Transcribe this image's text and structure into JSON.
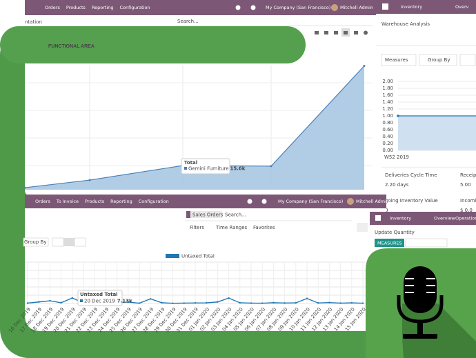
{
  "banner": {
    "title": "FUNCTIONAL AREA"
  },
  "top_app": {
    "menu": [
      "Orders",
      "Products",
      "Reporting",
      "Configuration"
    ],
    "company": "My Company (San Francisco)",
    "user": "Mitchell Admin",
    "breadcrumb": "ntation",
    "search": "Search...",
    "chart": {
      "type": "area",
      "tooltip_title": "Total",
      "series": [
        {
          "name": "Gemini Furniture",
          "color": "#a9c8e3",
          "values": [
            1300,
            6200,
            15600,
            15200,
            80000
          ],
          "value_labels": [
            null,
            null,
            "15.6k",
            null,
            null
          ]
        }
      ]
    }
  },
  "sales_app": {
    "menu": [
      "Orders",
      "To Invoice",
      "Products",
      "Reporting",
      "Configuration"
    ],
    "company": "My Company (San Francisco)",
    "user": "Mitchell Admin",
    "facet": "Sales Orders",
    "search": "Search...",
    "filters": "Filters",
    "time_ranges": "Time Ranges",
    "favorites": "Favorites",
    "group_by": "Group By",
    "chart": {
      "type": "line",
      "tooltip_title": "Untaxed Total",
      "categories": [
        "16 Dec 2019",
        "17 Dec 2019",
        "18 Dec 2019",
        "19 Dec 2019",
        "20 Dec 2019",
        "21 Dec 2019",
        "22 Dec 2019",
        "23 Dec 2019",
        "24 Dec 2019",
        "25 Dec 2019",
        "26 Dec 2019",
        "27 Dec 2019",
        "28 Dec 2019",
        "29 Dec 2019",
        "30 Dec 2019",
        "31 Dec 2019",
        "01 Jan 2020",
        "02 Jan 2020",
        "03 Jan 2020",
        "04 Jan 2020",
        "05 Jan 2020",
        "06 Jan 2020",
        "07 Jan 2020",
        "08 Jan 2020",
        "09 Jan 2020",
        "10 Jan 2020",
        "11 Jan 2020",
        "12 Jan 2020",
        "13 Jan 2020",
        "14 Jan 2020",
        "15 Jan 2020"
      ],
      "series": [
        {
          "name": "Untaxed Total",
          "color": "#1f77b4",
          "values": [
            500,
            2000,
            3500,
            1000,
            7130,
            800,
            1500,
            600,
            1200,
            1800,
            400,
            6000,
            1000,
            300,
            500,
            700,
            800,
            2000,
            7000,
            900,
            500,
            400,
            1000,
            600,
            800,
            6500,
            700,
            1200,
            500,
            800,
            400
          ],
          "value_labels": [
            null,
            null,
            null,
            null,
            "7.13k",
            null,
            null,
            null,
            null,
            null,
            null,
            null,
            null,
            null,
            null,
            null,
            null,
            null,
            null,
            null,
            null,
            null,
            null,
            null,
            null,
            null,
            null,
            null,
            null,
            null,
            null
          ]
        }
      ]
    }
  },
  "inventory_app": {
    "app": "Inventory",
    "menu": [
      "Overv"
    ],
    "title": "Warehouse Analysis",
    "measures": "Measures",
    "group_by": "Group By",
    "chart": {
      "type": "line",
      "categories": [
        "W52 2019"
      ],
      "values": [
        1
      ],
      "color": "#1f77b4",
      "ylim": [
        0,
        2
      ],
      "yticks": [
        {
          "value": 0,
          "label": "0.00"
        },
        {
          "value": 0.2,
          "label": "0.20"
        },
        {
          "value": 0.4,
          "label": "0.40"
        },
        {
          "value": 0.6,
          "label": "0.60"
        },
        {
          "value": 0.8,
          "label": "0.80"
        },
        {
          "value": 1,
          "label": "1.00"
        },
        {
          "value": 1.2,
          "label": "1.20"
        },
        {
          "value": 1.4,
          "label": "1.40"
        },
        {
          "value": 1.6,
          "label": "1.60"
        },
        {
          "value": 1.8,
          "label": "1.80"
        },
        {
          "value": 2,
          "label": "2.00"
        }
      ],
      "grid": true
    },
    "kpis": [
      {
        "label": "Deliveries Cycle Time",
        "value": "2.20 days"
      },
      {
        "label": "Receipt",
        "value": "5.00"
      },
      {
        "label": "going Inventory Value",
        "value": "0"
      },
      {
        "label": "Incomi",
        "value": "$ 0.0"
      }
    ]
  },
  "inventory_mini": {
    "app": "Inventory",
    "menu": [
      "Overview",
      "Operations"
    ],
    "title": "Update Quantity",
    "measures": "MEASURES"
  }
}
